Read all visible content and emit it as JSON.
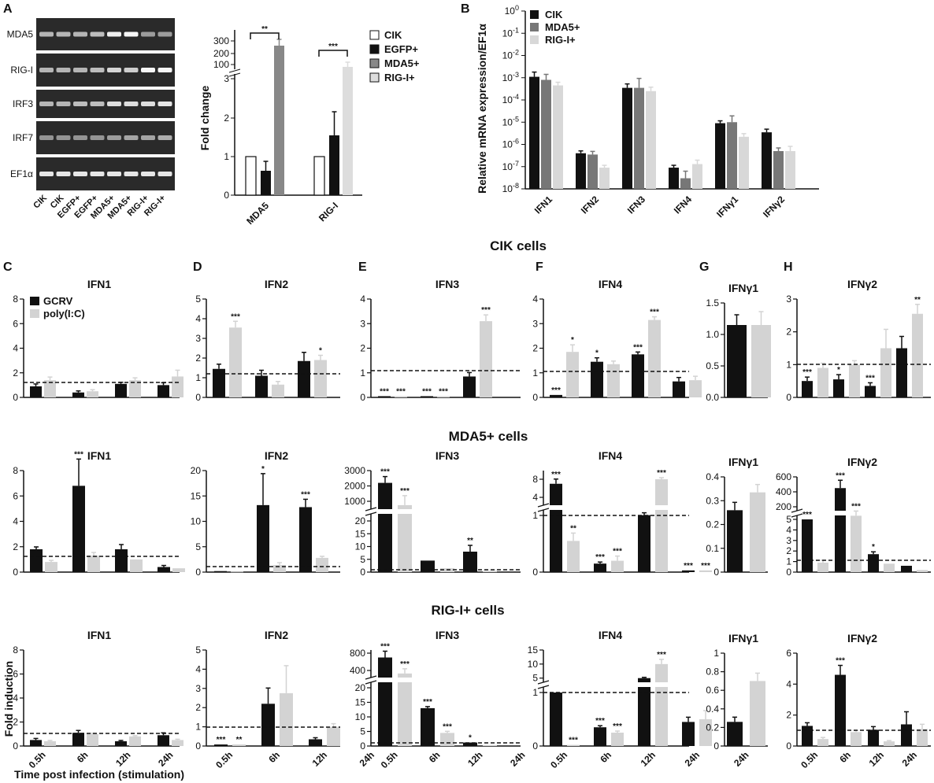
{
  "colors": {
    "gcrv": "#111111",
    "polyic": "#d3d3d3",
    "cik": "#111111",
    "egfp": "#111111",
    "mda5": "#777777",
    "rigi": "#d8d8d8"
  },
  "section_titles": {
    "cik": "CIK cells",
    "mda5": "MDA5+ cells",
    "rigi": "RIG-I+ cells"
  },
  "panel_letters": [
    "A",
    "B",
    "C",
    "D",
    "E",
    "F",
    "G",
    "H"
  ],
  "gel": {
    "rows": [
      "MDA5",
      "RIG-I",
      "IRF3",
      "IRF7",
      "EF1α"
    ],
    "lanes": [
      "CIK",
      "CIK",
      "EGFP+",
      "EGFP+",
      "MDA5+",
      "MDA5+",
      "RIG-I+",
      "RIG-I+"
    ]
  },
  "axis_texts": {
    "fold_change": "Fold change",
    "relative_mrna": "Relative mRNA expression/EF1α",
    "fold_induction": "Fold induction",
    "time_label": "Time post infection (stimulation)"
  },
  "chart_data": [
    {
      "id": "A_fold",
      "type": "bar",
      "ylabel": "Fold change",
      "categories": [
        "MDA5",
        "RIG-I"
      ],
      "legend": [
        "CIK",
        "EGFP+",
        "MDA5+",
        "RIG-I+"
      ],
      "y_ticks": [
        "0",
        "1",
        "2",
        "3",
        "100",
        "200",
        "300"
      ],
      "series": [
        {
          "name": "CIK",
          "values": [
            1,
            1
          ]
        },
        {
          "name": "EGFP+",
          "values": [
            0.65,
            1.55
          ]
        },
        {
          "name": "MDA5+",
          "values": [
            275,
            null
          ]
        },
        {
          "name": "RIG-I+",
          "values": [
            null,
            100
          ]
        }
      ],
      "significance": [
        "**",
        "***"
      ]
    },
    {
      "id": "B",
      "type": "bar",
      "ylabel": "Relative mRNA expression/EF1α",
      "yscale": "log",
      "ylim": [
        "1e-8",
        "1"
      ],
      "categories": [
        "IFN1",
        "IFN2",
        "IFN3",
        "IFN4",
        "IFNγ1",
        "IFNγ2"
      ],
      "legend": [
        "CIK",
        "MDA5+",
        "RIG-I+"
      ],
      "series": [
        {
          "name": "CIK",
          "values": [
            0.0011,
            4e-07,
            0.00035,
            9e-08,
            9e-06,
            3.5e-06
          ]
        },
        {
          "name": "MDA5+",
          "values": [
            0.0008,
            3.5e-07,
            0.00035,
            3e-08,
            1e-05,
            5e-07
          ]
        },
        {
          "name": "RIG-I+",
          "values": [
            0.00045,
            9e-08,
            0.00025,
            1.3e-07,
            2.2e-06,
            5e-07
          ]
        }
      ]
    },
    {
      "id": "C1",
      "row": "CIK cells",
      "title": "IFN1",
      "type": "bar",
      "legend": [
        "GCRV",
        "poly(I:C)"
      ],
      "categories": [
        "0.5h",
        "6h",
        "12h",
        "24h"
      ],
      "ylim": [
        0,
        8
      ],
      "y_ticks": [
        "0",
        "2",
        "4",
        "6",
        "8"
      ],
      "series": [
        {
          "name": "GCRV",
          "values": [
            0.9,
            0.4,
            1.1,
            1.0
          ]
        },
        {
          "name": "poly(I:C)",
          "values": [
            1.4,
            0.5,
            1.4,
            1.7
          ]
        }
      ]
    },
    {
      "id": "D1",
      "row": "CIK cells",
      "title": "IFN2",
      "type": "bar",
      "categories": [
        "0.5h",
        "6h",
        "12h",
        "24h"
      ],
      "ylim": [
        0,
        5
      ],
      "y_ticks": [
        "0",
        "1",
        "2",
        "3",
        "4",
        "5"
      ],
      "series": [
        {
          "name": "GCRV",
          "values": [
            1.45,
            1.1,
            1.85,
            null
          ]
        },
        {
          "name": "poly(I:C)",
          "values": [
            3.55,
            0.65,
            1.9,
            null
          ]
        }
      ],
      "significance": [
        [
          "",
          "***"
        ],
        [
          "",
          ""
        ],
        [
          "",
          "*"
        ],
        [
          "",
          ""
        ]
      ]
    },
    {
      "id": "E1",
      "row": "CIK cells",
      "title": "IFN3",
      "type": "bar",
      "categories": [
        "0.5h",
        "6h",
        "12h",
        "24h"
      ],
      "ylim": [
        0,
        4
      ],
      "y_ticks": [
        "0",
        "1",
        "2",
        "3",
        "4"
      ],
      "series": [
        {
          "name": "GCRV",
          "values": [
            0.05,
            0.05,
            0.85,
            null
          ]
        },
        {
          "name": "poly(I:C)",
          "values": [
            0.05,
            0.05,
            3.1,
            null
          ]
        }
      ],
      "significance": [
        [
          "***",
          "***"
        ],
        [
          "***",
          "***"
        ],
        [
          "",
          "***"
        ],
        [
          "",
          ""
        ]
      ]
    },
    {
      "id": "F1",
      "row": "CIK cells",
      "title": "IFN4",
      "type": "bar",
      "categories": [
        "0.5h",
        "6h",
        "12h",
        "24h"
      ],
      "ylim": [
        0,
        4
      ],
      "y_ticks": [
        "0",
        "1",
        "2",
        "3",
        "4"
      ],
      "series": [
        {
          "name": "GCRV",
          "values": [
            0.1,
            1.45,
            1.75,
            0.65
          ]
        },
        {
          "name": "poly(I:C)",
          "values": [
            1.85,
            1.35,
            3.15,
            0.7
          ]
        }
      ],
      "significance": [
        [
          "***",
          "*"
        ],
        [
          "*",
          ""
        ],
        [
          "***",
          "***"
        ],
        [
          "",
          ""
        ]
      ]
    },
    {
      "id": "G1",
      "row": "CIK cells",
      "title": "IFNγ1",
      "type": "bar",
      "categories": [
        ""
      ],
      "ylim": [
        0,
        1.5
      ],
      "y_ticks": [
        "0.0",
        "0.5",
        "1.0",
        "1.5"
      ],
      "series": [
        {
          "name": "GCRV",
          "values": [
            1.15
          ]
        },
        {
          "name": "poly(I:C)",
          "values": [
            1.15
          ]
        }
      ]
    },
    {
      "id": "H1",
      "row": "CIK cells",
      "title": "IFNγ2",
      "type": "bar",
      "categories": [
        "0.5h",
        "6h",
        "12h",
        "24h"
      ],
      "ylim": [
        0,
        3
      ],
      "y_ticks": [
        "0",
        "1",
        "2",
        "3"
      ],
      "series": [
        {
          "name": "GCRV",
          "values": [
            0.5,
            0.55,
            0.35,
            1.5
          ]
        },
        {
          "name": "poly(I:C)",
          "values": [
            0.9,
            1.0,
            1.5,
            2.55
          ]
        }
      ],
      "significance": [
        [
          "***",
          ""
        ],
        [
          "*",
          ""
        ],
        [
          "***",
          ""
        ],
        [
          "",
          "**"
        ]
      ]
    },
    {
      "id": "C2",
      "row": "MDA5+ cells",
      "title": "IFN1",
      "type": "bar",
      "categories": [
        "0.5h",
        "6h",
        "12h",
        "24h"
      ],
      "ylim": [
        0,
        8
      ],
      "y_ticks": [
        "0",
        "2",
        "4",
        "6",
        "8"
      ],
      "series": [
        {
          "name": "GCRV",
          "values": [
            1.8,
            6.8,
            1.8,
            0.4
          ]
        },
        {
          "name": "poly(I:C)",
          "values": [
            0.8,
            1.3,
            1.0,
            0.3
          ]
        }
      ],
      "significance": [
        [
          "",
          ""
        ],
        [
          "***",
          ""
        ],
        [
          "",
          ""
        ],
        [
          "",
          ""
        ]
      ]
    },
    {
      "id": "D2",
      "row": "MDA5+ cells",
      "title": "IFN2",
      "type": "bar",
      "categories": [
        "0.5h",
        "6h",
        "12h",
        "24h"
      ],
      "ylim": [
        0,
        20
      ],
      "y_ticks": [
        "0",
        "5",
        "10",
        "15",
        "20"
      ],
      "series": [
        {
          "name": "GCRV",
          "values": [
            0.2,
            13.2,
            12.8,
            null
          ]
        },
        {
          "name": "poly(I:C)",
          "values": [
            0.1,
            1.4,
            2.8,
            null
          ]
        }
      ],
      "significance": [
        [
          "",
          ""
        ],
        [
          "*",
          ""
        ],
        [
          "***",
          ""
        ],
        [
          "",
          ""
        ]
      ]
    },
    {
      "id": "E2",
      "row": "MDA5+ cells",
      "title": "IFN3",
      "type": "bar",
      "categories": [
        "0.5h",
        "6h",
        "12h",
        "24h"
      ],
      "y_ticks": [
        "0",
        "5",
        "10",
        "15",
        "20",
        "1000",
        "2000",
        "3000"
      ],
      "series": [
        {
          "name": "GCRV",
          "values": [
            2200,
            4.5,
            8,
            null
          ]
        },
        {
          "name": "poly(I:C)",
          "values": [
            750,
            1.5,
            0.5,
            null
          ]
        }
      ],
      "significance": [
        [
          "***",
          "***"
        ],
        [
          "",
          ""
        ],
        [
          "**",
          ""
        ],
        [
          "",
          ""
        ]
      ]
    },
    {
      "id": "F2",
      "row": "MDA5+ cells",
      "title": "IFN4",
      "type": "bar",
      "categories": [
        "0.5h",
        "6h",
        "12h",
        "24h"
      ],
      "y_ticks": [
        "0",
        "1",
        "4",
        "8"
      ],
      "series": [
        {
          "name": "GCRV",
          "values": [
            7,
            0.15,
            1.05,
            0.03
          ]
        },
        {
          "name": "poly(I:C)",
          "values": [
            0.55,
            0.2,
            8,
            0.03
          ]
        }
      ],
      "significance": [
        [
          "***",
          "**"
        ],
        [
          "***",
          "***"
        ],
        [
          "",
          "***"
        ],
        [
          "***",
          "***"
        ]
      ]
    },
    {
      "id": "G2",
      "row": "MDA5+ cells",
      "title": "IFNγ1",
      "type": "bar",
      "categories": [
        ""
      ],
      "ylim": [
        0,
        0.4
      ],
      "y_ticks": [
        "0",
        "0.1",
        "0.2",
        "0.3",
        "0.4"
      ],
      "series": [
        {
          "name": "GCRV",
          "values": [
            0.26
          ]
        },
        {
          "name": "poly(I:C)",
          "values": [
            0.335
          ]
        }
      ]
    },
    {
      "id": "H2",
      "row": "MDA5+ cells",
      "title": "IFNγ2",
      "type": "bar",
      "categories": [
        "0.5h",
        "6h",
        "12h",
        "24h"
      ],
      "y_ticks": [
        "0",
        "1",
        "2",
        "3",
        "4",
        "5",
        "200",
        "400",
        "600"
      ],
      "series": [
        {
          "name": "GCRV",
          "values": [
            5,
            450,
            1.7,
            0.6
          ]
        },
        {
          "name": "poly(I:C)",
          "values": [
            0.9,
            80,
            0.8,
            0.2
          ]
        }
      ],
      "significance": [
        [
          "***",
          ""
        ],
        [
          "***",
          "***"
        ],
        [
          "*",
          ""
        ],
        [
          "",
          ""
        ]
      ]
    },
    {
      "id": "C3",
      "row": "RIG-I+ cells",
      "title": "IFN1",
      "type": "bar",
      "ylabel": "Fold induction",
      "categories": [
        "0.5h",
        "6h",
        "12h",
        "24h"
      ],
      "ylim": [
        0,
        8
      ],
      "y_ticks": [
        "0",
        "2",
        "4",
        "6",
        "8"
      ],
      "series": [
        {
          "name": "GCRV",
          "values": [
            0.5,
            1.1,
            0.4,
            0.9
          ]
        },
        {
          "name": "poly(I:C)",
          "values": [
            0.4,
            1.0,
            0.8,
            0.5
          ]
        }
      ]
    },
    {
      "id": "D3",
      "row": "RIG-I+ cells",
      "title": "IFN2",
      "type": "bar",
      "categories": [
        "0.5h",
        "6h",
        "12h",
        "24h"
      ],
      "ylim": [
        0,
        5
      ],
      "y_ticks": [
        "0",
        "1",
        "2",
        "3",
        "4",
        "5"
      ],
      "series": [
        {
          "name": "GCRV",
          "values": [
            0.08,
            2.2,
            0.35,
            null
          ]
        },
        {
          "name": "poly(I:C)",
          "values": [
            0.08,
            2.75,
            1.0,
            null
          ]
        }
      ],
      "significance": [
        [
          "***",
          "**"
        ],
        [
          "",
          ""
        ],
        [
          "",
          ""
        ],
        [
          "",
          ""
        ]
      ]
    },
    {
      "id": "E3",
      "row": "RIG-I+ cells",
      "title": "IFN3",
      "type": "bar",
      "categories": [
        "0.5h",
        "6h",
        "12h",
        "24h"
      ],
      "y_ticks": [
        "0",
        "5",
        "10",
        "15",
        "20",
        "400",
        "800"
      ],
      "series": [
        {
          "name": "GCRV",
          "values": [
            700,
            13,
            1.2,
            null
          ]
        },
        {
          "name": "poly(I:C)",
          "values": [
            330,
            4.5,
            0.3,
            null
          ]
        }
      ],
      "significance": [
        [
          "***",
          "***"
        ],
        [
          "***",
          "***"
        ],
        [
          "*",
          ""
        ],
        [
          "",
          ""
        ]
      ]
    },
    {
      "id": "F3",
      "row": "RIG-I+ cells",
      "title": "IFN4",
      "type": "bar",
      "categories": [
        "0.5h",
        "6h",
        "12h",
        "24h"
      ],
      "y_ticks": [
        "0",
        "1",
        "5",
        "10",
        "15"
      ],
      "series": [
        {
          "name": "GCRV",
          "values": [
            1,
            0.35,
            5,
            0.45
          ]
        },
        {
          "name": "poly(I:C)",
          "values": [
            0.02,
            0.25,
            10,
            0.5
          ]
        }
      ],
      "significance": [
        [
          "",
          "***"
        ],
        [
          "***",
          "***"
        ],
        [
          "",
          "***"
        ],
        [
          "",
          ""
        ]
      ]
    },
    {
      "id": "G3",
      "row": "RIG-I+ cells",
      "title": "IFNγ1",
      "type": "bar",
      "categories": [
        "24h"
      ],
      "ylim": [
        0,
        1
      ],
      "y_ticks": [
        "0",
        "0.2",
        "0.4",
        "0.6",
        "0.8",
        "1"
      ],
      "series": [
        {
          "name": "GCRV",
          "values": [
            0.26
          ]
        },
        {
          "name": "poly(I:C)",
          "values": [
            0.7
          ]
        }
      ]
    },
    {
      "id": "H3",
      "row": "RIG-I+ cells",
      "title": "IFNγ2",
      "type": "bar",
      "categories": [
        "0.5h",
        "6h",
        "12h",
        "24h"
      ],
      "ylim": [
        0,
        6
      ],
      "y_ticks": [
        "0",
        "2",
        "4",
        "6"
      ],
      "series": [
        {
          "name": "GCRV",
          "values": [
            1.3,
            4.6,
            1.05,
            1.4
          ]
        },
        {
          "name": "poly(I:C)",
          "values": [
            0.45,
            0.9,
            0.3,
            1.1
          ]
        }
      ],
      "significance": [
        [
          "",
          ""
        ],
        [
          "***",
          ""
        ],
        [
          "",
          ""
        ],
        [
          "",
          ""
        ]
      ]
    }
  ]
}
